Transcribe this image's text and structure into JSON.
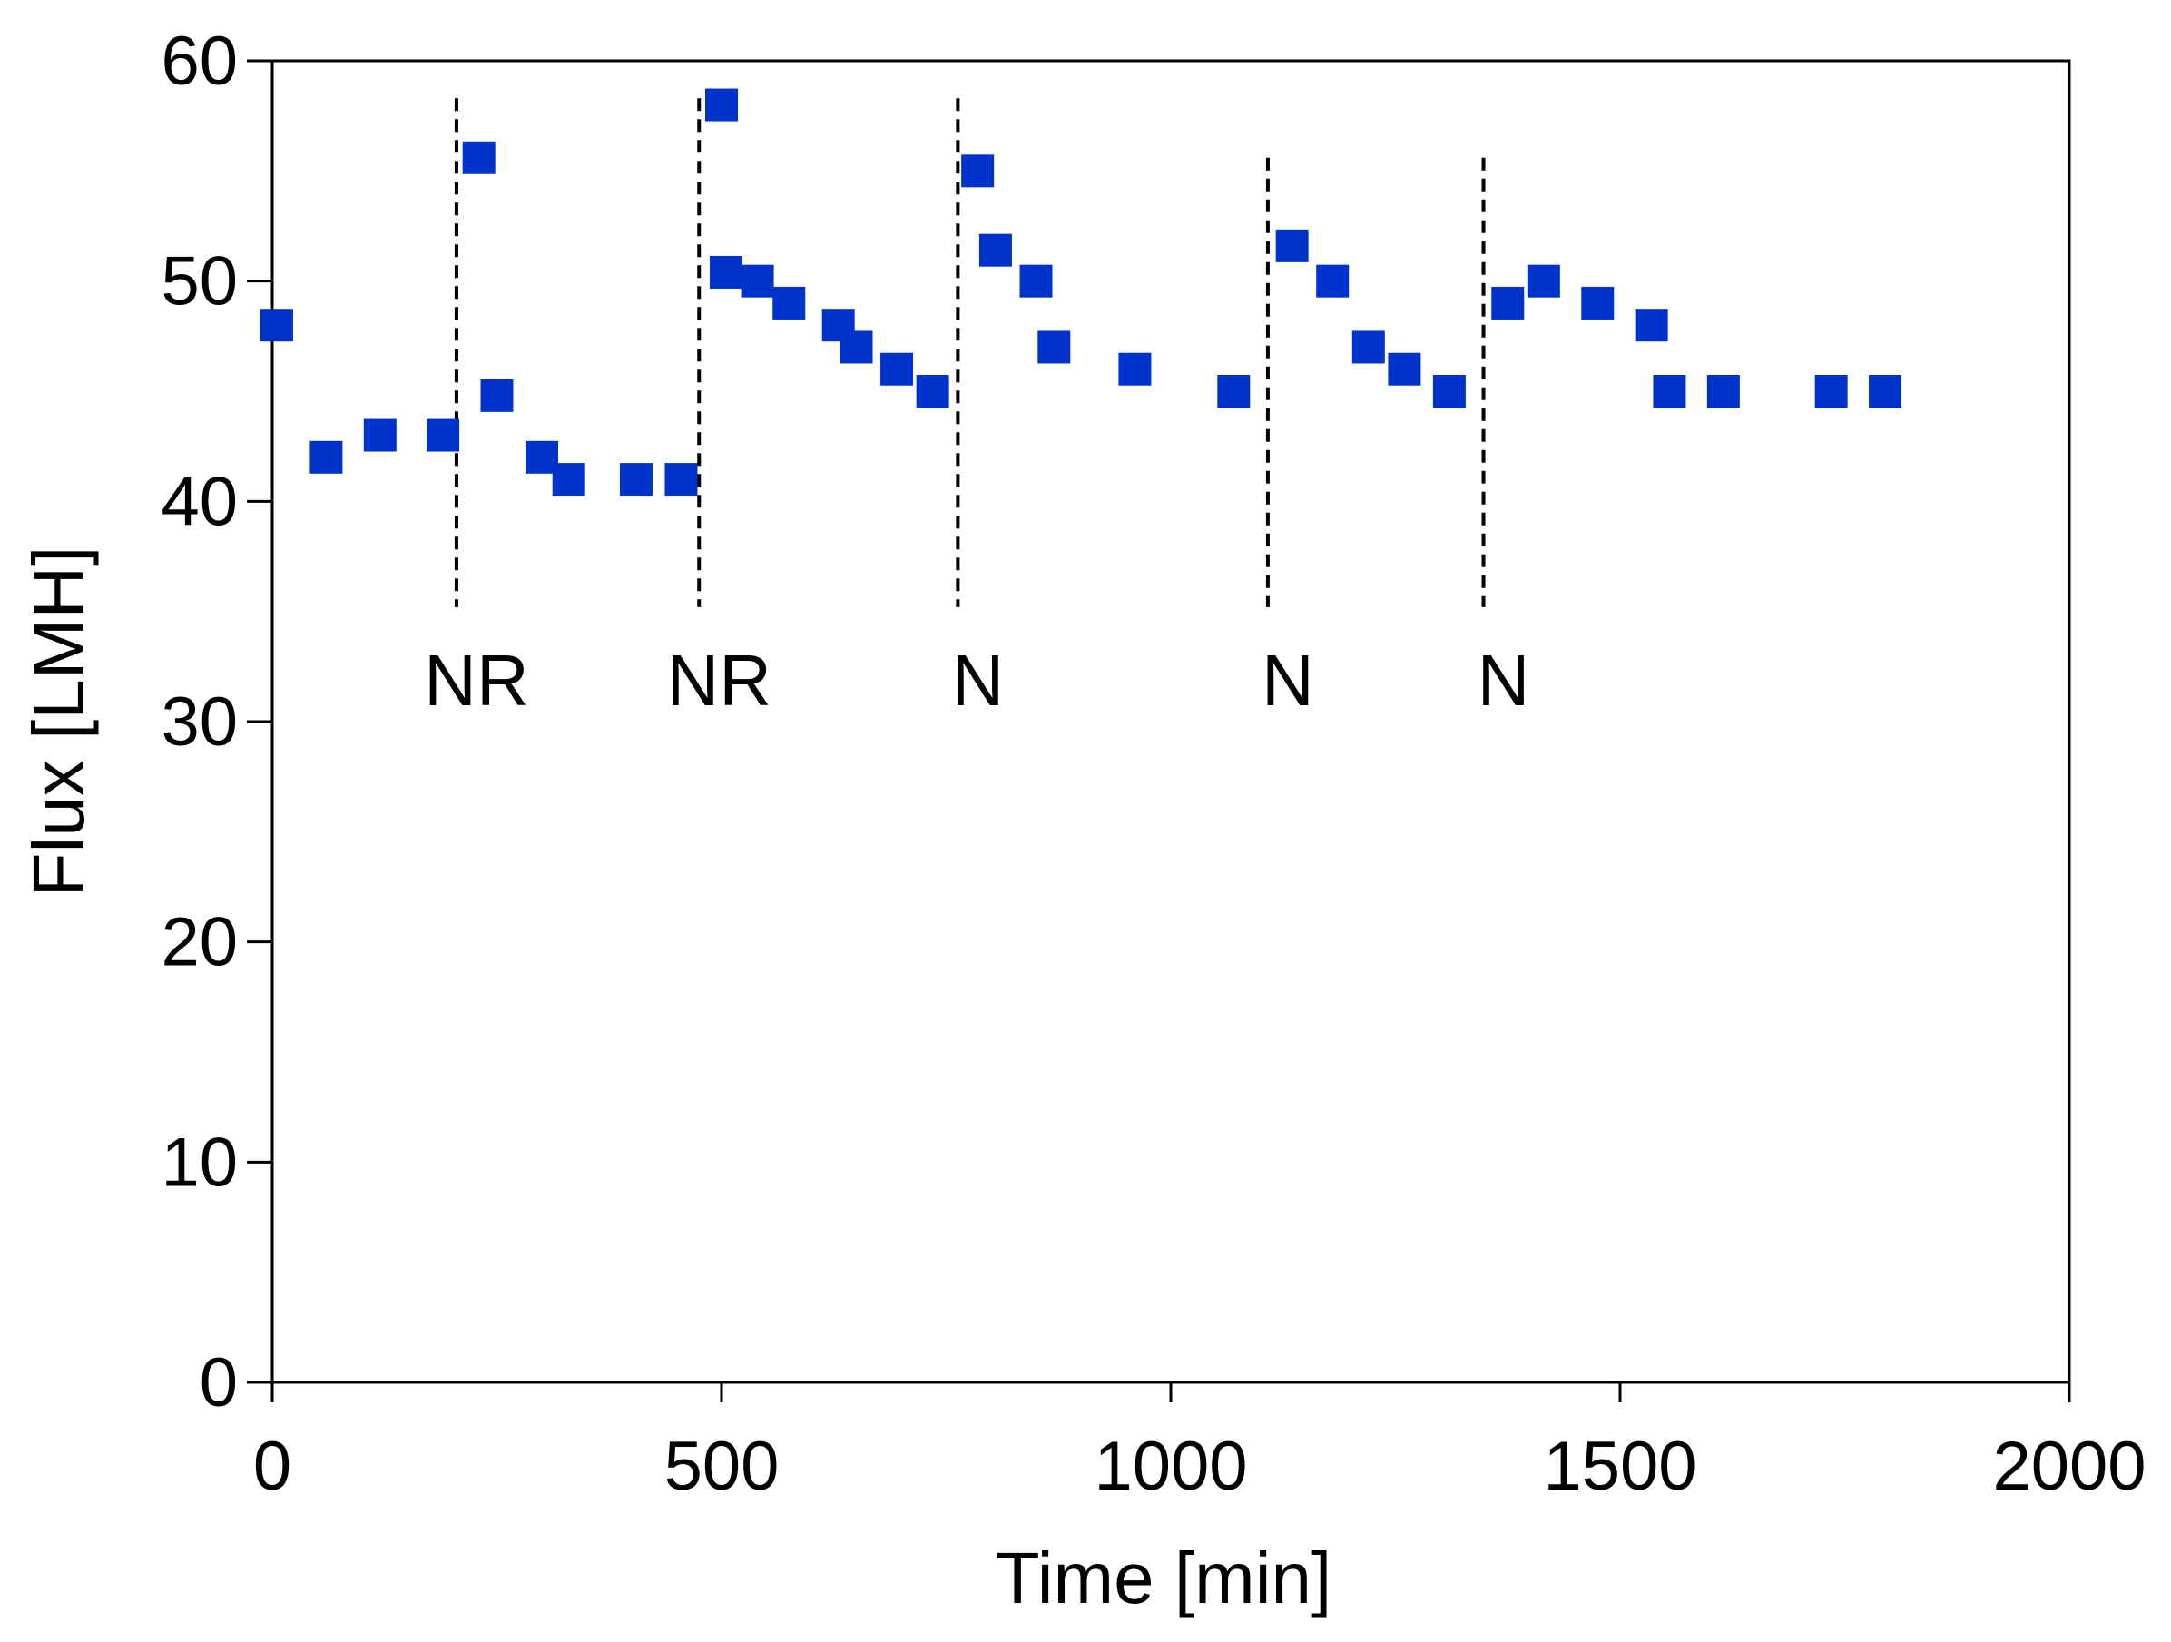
{
  "chart_data": {
    "type": "scatter",
    "xlabel": "Time [min]",
    "ylabel": "Flux [LMH]",
    "xlim": [
      0,
      2000
    ],
    "ylim": [
      0,
      60
    ],
    "xticks": [
      0,
      500,
      1000,
      1500,
      2000
    ],
    "yticks": [
      0,
      10,
      20,
      30,
      40,
      50,
      60
    ],
    "xtick_labels": [
      "0",
      "500",
      "1000",
      "1500",
      "2000"
    ],
    "ytick_labels": [
      "0",
      "10",
      "20",
      "30",
      "40",
      "50",
      "60"
    ],
    "grid": false,
    "marker_color": "#0033cc",
    "points": [
      {
        "x": 5,
        "y": 48
      },
      {
        "x": 60,
        "y": 42
      },
      {
        "x": 120,
        "y": 43
      },
      {
        "x": 190,
        "y": 43
      },
      {
        "x": 230,
        "y": 55.6
      },
      {
        "x": 250,
        "y": 44.8
      },
      {
        "x": 300,
        "y": 42
      },
      {
        "x": 330,
        "y": 41
      },
      {
        "x": 405,
        "y": 41
      },
      {
        "x": 455,
        "y": 41
      },
      {
        "x": 500,
        "y": 58
      },
      {
        "x": 505,
        "y": 50.4
      },
      {
        "x": 540,
        "y": 50
      },
      {
        "x": 575,
        "y": 49
      },
      {
        "x": 630,
        "y": 48
      },
      {
        "x": 650,
        "y": 47
      },
      {
        "x": 695,
        "y": 46
      },
      {
        "x": 735,
        "y": 45
      },
      {
        "x": 785,
        "y": 55
      },
      {
        "x": 805,
        "y": 51.4
      },
      {
        "x": 850,
        "y": 50
      },
      {
        "x": 870,
        "y": 47
      },
      {
        "x": 960,
        "y": 46
      },
      {
        "x": 1070,
        "y": 45
      },
      {
        "x": 1135,
        "y": 51.6
      },
      {
        "x": 1180,
        "y": 50
      },
      {
        "x": 1220,
        "y": 47
      },
      {
        "x": 1260,
        "y": 46
      },
      {
        "x": 1310,
        "y": 45
      },
      {
        "x": 1375,
        "y": 49
      },
      {
        "x": 1415,
        "y": 50
      },
      {
        "x": 1475,
        "y": 49
      },
      {
        "x": 1535,
        "y": 48
      },
      {
        "x": 1555,
        "y": 45
      },
      {
        "x": 1615,
        "y": 45
      },
      {
        "x": 1735,
        "y": 45
      },
      {
        "x": 1795,
        "y": 45
      }
    ],
    "annotations": [
      {
        "label": "NR",
        "x": 205,
        "y_top": 58.3,
        "y_bottom": 35.2
      },
      {
        "label": "NR",
        "x": 475,
        "y_top": 58.3,
        "y_bottom": 35.2
      },
      {
        "label": "N",
        "x": 763,
        "y_top": 58.3,
        "y_bottom": 35.2
      },
      {
        "label": "N",
        "x": 1108,
        "y_top": 55.6,
        "y_bottom": 35.2
      },
      {
        "label": "N",
        "x": 1348,
        "y_top": 55.6,
        "y_bottom": 35.2
      }
    ]
  }
}
